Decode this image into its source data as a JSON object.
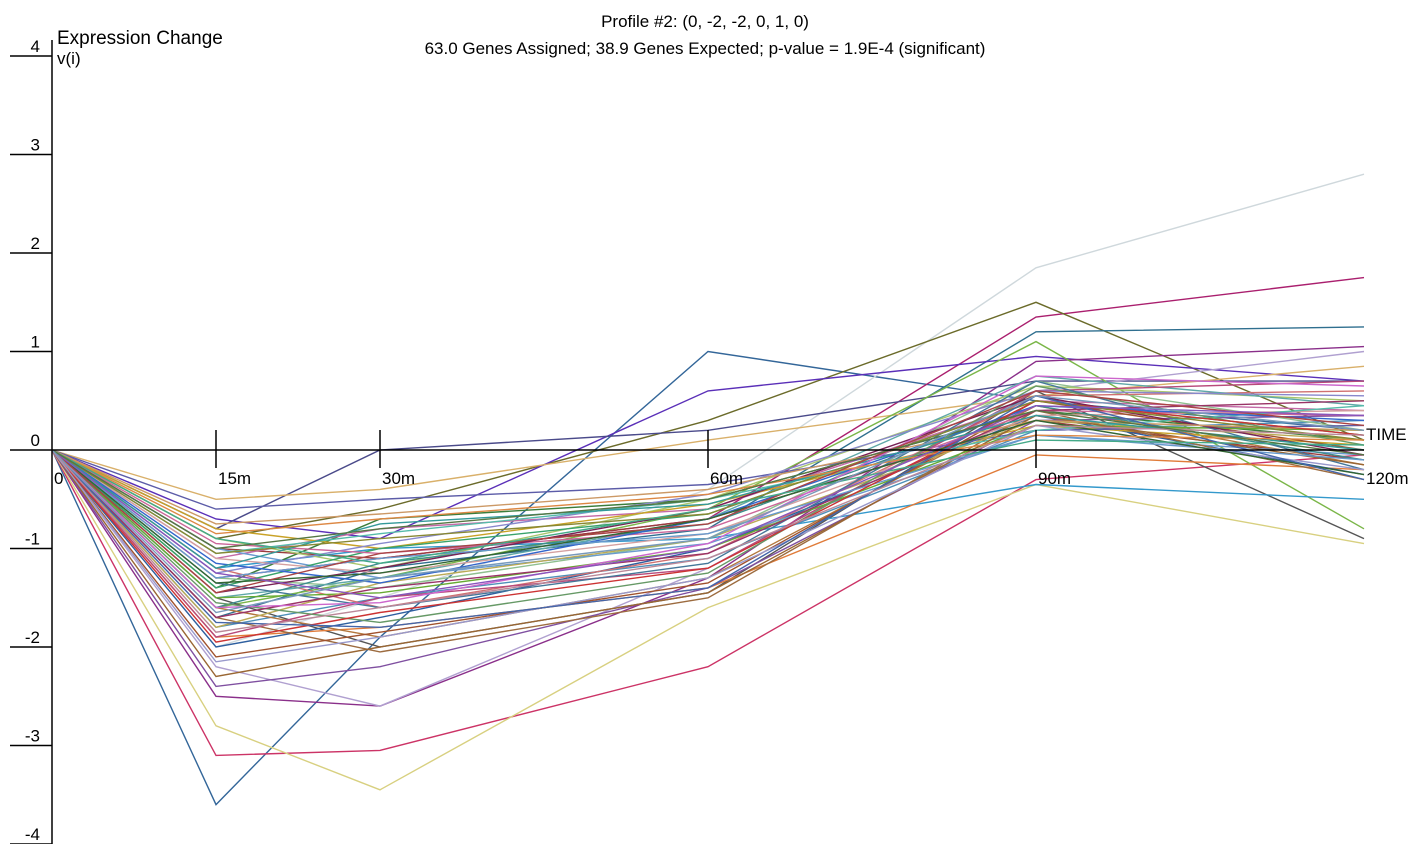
{
  "chart_data": {
    "type": "line",
    "title_lines": [
      "Profile #2: (0, -2, -2, 0, 1, 0)",
      "63.0 Genes Assigned; 38.9 Genes Expected; p-value = 1.9E-4 (significant)"
    ],
    "ylabel_line1": "Expression Change",
    "ylabel_line2": "v(i)",
    "xlabel": "TIME",
    "x": [
      0,
      15,
      30,
      60,
      90,
      120
    ],
    "x_tick_labels": [
      "0",
      "15m",
      "30m",
      "60m",
      "90m",
      "120m"
    ],
    "y_ticks": [
      4,
      3,
      2,
      1,
      0,
      -1,
      -2,
      -3,
      -4
    ],
    "y_tick_labels": [
      "4",
      "3",
      "2",
      "1",
      "0",
      "-1",
      "-2",
      "-3",
      "-4"
    ],
    "ylim": [
      -4,
      4
    ],
    "grid": false,
    "series": [
      {
        "color": "#336699",
        "values": [
          0,
          -3.6,
          -1.9,
          1.0,
          0.5,
          0.2
        ]
      },
      {
        "color": "#cfd8dc",
        "values": [
          0,
          -2.0,
          -1.5,
          -0.4,
          1.85,
          2.8
        ]
      },
      {
        "color": "#aa1f6e",
        "values": [
          0,
          -1.3,
          -1.1,
          -0.7,
          1.35,
          1.75
        ]
      },
      {
        "color": "#6b6b2a",
        "values": [
          0,
          -0.9,
          -0.6,
          0.3,
          1.5,
          0.1
        ]
      },
      {
        "color": "#2f6f8f",
        "values": [
          0,
          -1.7,
          -1.2,
          -0.8,
          1.2,
          1.25
        ]
      },
      {
        "color": "#5a2fb8",
        "values": [
          0,
          -0.7,
          -0.9,
          0.6,
          0.95,
          0.7
        ]
      },
      {
        "color": "#cc3366",
        "values": [
          0,
          -3.1,
          -3.05,
          -2.2,
          -0.3,
          -0.05
        ]
      },
      {
        "color": "#d8d080",
        "values": [
          0,
          -2.8,
          -3.45,
          -1.6,
          -0.35,
          -0.95
        ]
      },
      {
        "color": "#8a2f8a",
        "values": [
          0,
          -2.5,
          -2.6,
          -1.3,
          0.9,
          1.05
        ]
      },
      {
        "color": "#4a4a8a",
        "values": [
          0,
          -0.8,
          0.0,
          0.2,
          0.7,
          0.7
        ]
      },
      {
        "color": "#d9b06a",
        "values": [
          0,
          -0.5,
          -0.4,
          0.1,
          0.55,
          0.85
        ]
      },
      {
        "color": "#7ab648",
        "values": [
          0,
          -1.6,
          -1.3,
          -0.6,
          1.1,
          -0.8
        ]
      },
      {
        "color": "#555555",
        "values": [
          0,
          -1.5,
          -2.0,
          -1.45,
          0.6,
          -0.9
        ]
      },
      {
        "color": "#3399cc",
        "values": [
          0,
          -1.2,
          -1.0,
          -0.9,
          -0.35,
          -0.5
        ]
      },
      {
        "color": "#e07b39",
        "values": [
          0,
          -1.9,
          -1.8,
          -1.4,
          -0.05,
          -0.2
        ]
      },
      {
        "color": "#b0a0d0",
        "values": [
          0,
          -2.2,
          -2.6,
          -1.2,
          0.6,
          1.0
        ]
      },
      {
        "color": "#3b7d3b",
        "values": [
          0,
          -1.4,
          -0.7,
          -0.5,
          0.4,
          0.1
        ]
      },
      {
        "color": "#9a3d3d",
        "values": [
          0,
          -1.0,
          -1.1,
          -0.7,
          0.3,
          -0.1
        ]
      },
      {
        "color": "#4d8fb8",
        "values": [
          0,
          -1.8,
          -1.5,
          -1.1,
          0.2,
          0.3
        ]
      },
      {
        "color": "#c46aa6",
        "values": [
          0,
          -1.1,
          -0.8,
          -0.6,
          0.5,
          0.4
        ]
      },
      {
        "color": "#8fbf8f",
        "values": [
          0,
          -1.3,
          -1.4,
          -0.9,
          0.7,
          0.2
        ]
      },
      {
        "color": "#b3773d",
        "values": [
          0,
          -1.6,
          -1.9,
          -1.3,
          0.45,
          -0.15
        ]
      },
      {
        "color": "#2e5f9f",
        "values": [
          0,
          -2.0,
          -1.7,
          -1.0,
          0.35,
          -0.25
        ]
      },
      {
        "color": "#a8c66c",
        "values": [
          0,
          -0.9,
          -1.2,
          -0.5,
          0.65,
          0.5
        ]
      },
      {
        "color": "#7f4fa0",
        "values": [
          0,
          -2.4,
          -2.2,
          -1.4,
          0.3,
          0.35
        ]
      },
      {
        "color": "#d07070",
        "values": [
          0,
          -1.2,
          -1.6,
          -1.05,
          0.55,
          0.6
        ]
      },
      {
        "color": "#5fa8a8",
        "values": [
          0,
          -1.5,
          -1.3,
          -0.7,
          0.75,
          0.45
        ]
      },
      {
        "color": "#c9a227",
        "values": [
          0,
          -0.8,
          -1.0,
          -0.55,
          0.25,
          0.05
        ]
      },
      {
        "color": "#6a9ad0",
        "values": [
          0,
          -1.0,
          -1.3,
          -0.95,
          0.15,
          -0.05
        ]
      },
      {
        "color": "#9c6b3f",
        "values": [
          0,
          -1.7,
          -2.05,
          -1.5,
          0.4,
          -0.3
        ]
      },
      {
        "color": "#39a36b",
        "values": [
          0,
          -1.4,
          -1.0,
          -0.65,
          0.5,
          0.15
        ]
      },
      {
        "color": "#b84a7a",
        "values": [
          0,
          -1.9,
          -1.5,
          -1.2,
          0.6,
          0.7
        ]
      },
      {
        "color": "#5c5ca8",
        "values": [
          0,
          -0.6,
          -0.5,
          -0.35,
          0.2,
          0.25
        ]
      },
      {
        "color": "#d4a0a0",
        "values": [
          0,
          -1.1,
          -1.25,
          -0.85,
          0.35,
          0.4
        ]
      },
      {
        "color": "#3d8c8c",
        "values": [
          0,
          -1.6,
          -1.15,
          -0.75,
          0.45,
          -0.1
        ]
      },
      {
        "color": "#a0522d",
        "values": [
          0,
          -2.1,
          -1.85,
          -1.35,
          0.5,
          0.0
        ]
      },
      {
        "color": "#8888cc",
        "values": [
          0,
          -1.25,
          -0.95,
          -0.45,
          0.6,
          0.55
        ]
      },
      {
        "color": "#66aa33",
        "values": [
          0,
          -1.5,
          -1.45,
          -1.0,
          0.25,
          0.2
        ]
      },
      {
        "color": "#cc6699",
        "values": [
          0,
          -0.95,
          -1.05,
          -0.8,
          0.4,
          0.35
        ]
      },
      {
        "color": "#447799",
        "values": [
          0,
          -1.35,
          -1.6,
          -1.15,
          0.7,
          -0.2
        ]
      },
      {
        "color": "#bbaa55",
        "values": [
          0,
          -1.8,
          -1.35,
          -0.9,
          0.3,
          0.1
        ]
      },
      {
        "color": "#772255",
        "values": [
          0,
          -1.45,
          -1.2,
          -0.6,
          0.55,
          -0.05
        ]
      },
      {
        "color": "#55bbaa",
        "values": [
          0,
          -1.05,
          -0.85,
          -0.5,
          0.2,
          0.45
        ]
      },
      {
        "color": "#996633",
        "values": [
          0,
          -2.3,
          -2.0,
          -1.45,
          0.35,
          -0.15
        ]
      },
      {
        "color": "#3366cc",
        "values": [
          0,
          -1.15,
          -1.35,
          -0.7,
          0.45,
          0.3
        ]
      },
      {
        "color": "#cc9966",
        "values": [
          0,
          -0.75,
          -0.65,
          -0.4,
          0.3,
          0.2
        ]
      },
      {
        "color": "#669966",
        "values": [
          0,
          -1.55,
          -1.75,
          -1.25,
          0.65,
          0.05
        ]
      },
      {
        "color": "#993366",
        "values": [
          0,
          -1.7,
          -1.4,
          -1.05,
          0.4,
          0.5
        ]
      },
      {
        "color": "#6699cc",
        "values": [
          0,
          -1.3,
          -1.1,
          -0.85,
          0.15,
          -0.1
        ]
      },
      {
        "color": "#cc3333",
        "values": [
          0,
          -1.95,
          -1.65,
          -1.2,
          0.5,
          0.15
        ]
      },
      {
        "color": "#339999",
        "values": [
          0,
          -1.2,
          -0.75,
          -0.55,
          0.35,
          0.0
        ]
      },
      {
        "color": "#9999cc",
        "values": [
          0,
          -2.15,
          -1.9,
          -1.3,
          0.25,
          -0.2
        ]
      },
      {
        "color": "#888833",
        "values": [
          0,
          -1.05,
          -0.9,
          -0.65,
          0.5,
          0.1
        ]
      },
      {
        "color": "#cc66cc",
        "values": [
          0,
          -1.6,
          -1.55,
          -0.95,
          0.75,
          0.65
        ]
      },
      {
        "color": "#336633",
        "values": [
          0,
          -1.35,
          -1.25,
          -0.7,
          0.3,
          -0.25
        ]
      },
      {
        "color": "#dd8844",
        "values": [
          0,
          -0.85,
          -0.7,
          -0.45,
          0.15,
          0.1
        ]
      },
      {
        "color": "#4466aa",
        "values": [
          0,
          -1.75,
          -1.8,
          -1.4,
          0.55,
          -0.3
        ]
      },
      {
        "color": "#aa4444",
        "values": [
          0,
          -1.45,
          -1.05,
          -0.75,
          0.6,
          0.25
        ]
      },
      {
        "color": "#44aa88",
        "values": [
          0,
          -0.9,
          -1.15,
          -0.6,
          0.1,
          0.05
        ]
      },
      {
        "color": "#8855bb",
        "values": [
          0,
          -1.25,
          -1.5,
          -1.0,
          0.45,
          0.35
        ]
      },
      {
        "color": "#bb8899",
        "values": [
          0,
          -1.85,
          -1.6,
          -1.1,
          0.25,
          0.15
        ]
      },
      {
        "color": "#557744",
        "values": [
          0,
          -1.0,
          -0.8,
          -0.5,
          0.4,
          -0.05
        ]
      },
      {
        "color": "#7799bb",
        "values": [
          0,
          -1.65,
          -1.3,
          -0.9,
          0.55,
          0.2
        ]
      }
    ]
  }
}
